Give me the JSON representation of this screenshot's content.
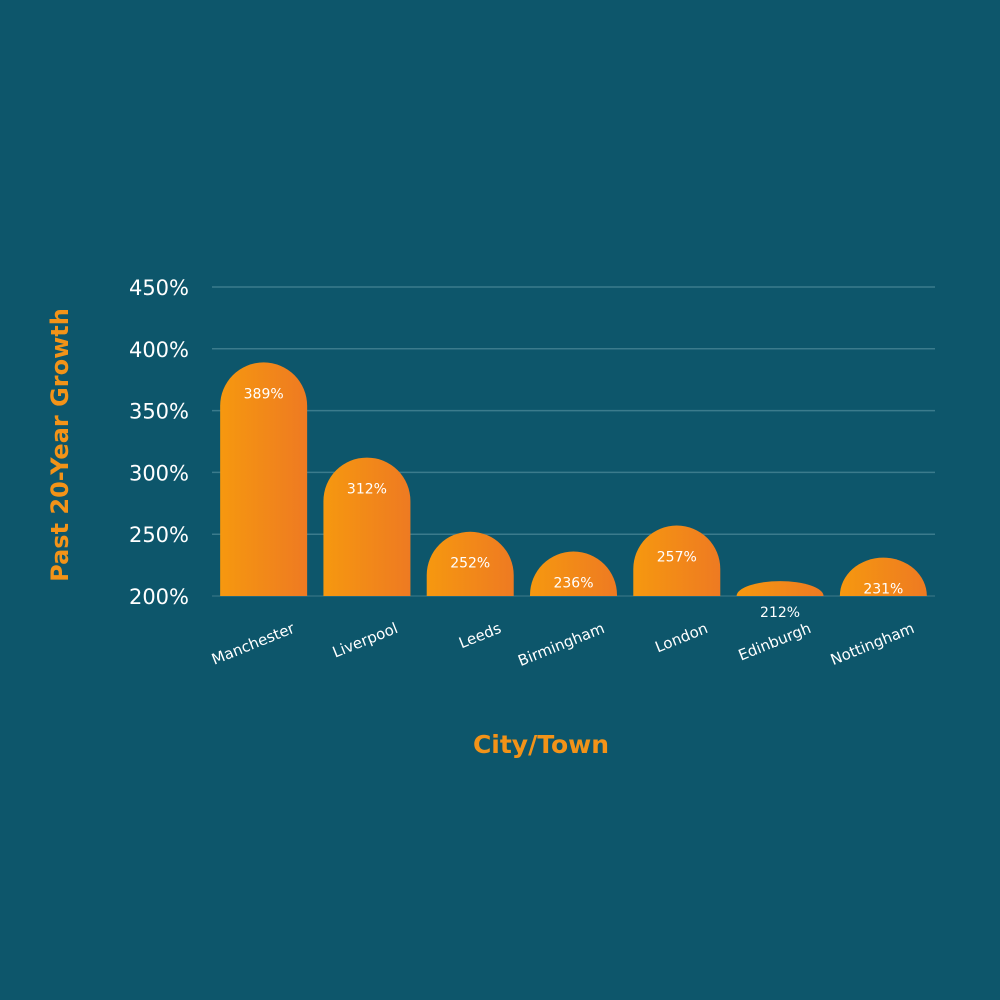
{
  "colors": {
    "background": "#0d566b",
    "bar_start": "#f6980f",
    "bar_end": "#ee7a22",
    "accent": "#f39318",
    "gridline": "#3b7b8c",
    "text": "#ffffff"
  },
  "chart_data": {
    "type": "bar",
    "categories": [
      "Manchester",
      "Liverpool",
      "Leeds",
      "Birmingham",
      "London",
      "Edinburgh",
      "Nottingham"
    ],
    "values": [
      389,
      312,
      252,
      236,
      257,
      212,
      231
    ],
    "value_labels": [
      "389%",
      "312%",
      "252%",
      "236%",
      "257%",
      "212%",
      "231%"
    ],
    "title": "",
    "xlabel": "City/Town",
    "ylabel": "Past 20-Year Growth",
    "ylim": [
      200,
      450
    ],
    "yticks": [
      200,
      250,
      300,
      350,
      400,
      450
    ],
    "ytick_labels": [
      "200%",
      "250%",
      "300%",
      "350%",
      "400%",
      "450%"
    ],
    "grid": true,
    "legend": "none"
  }
}
